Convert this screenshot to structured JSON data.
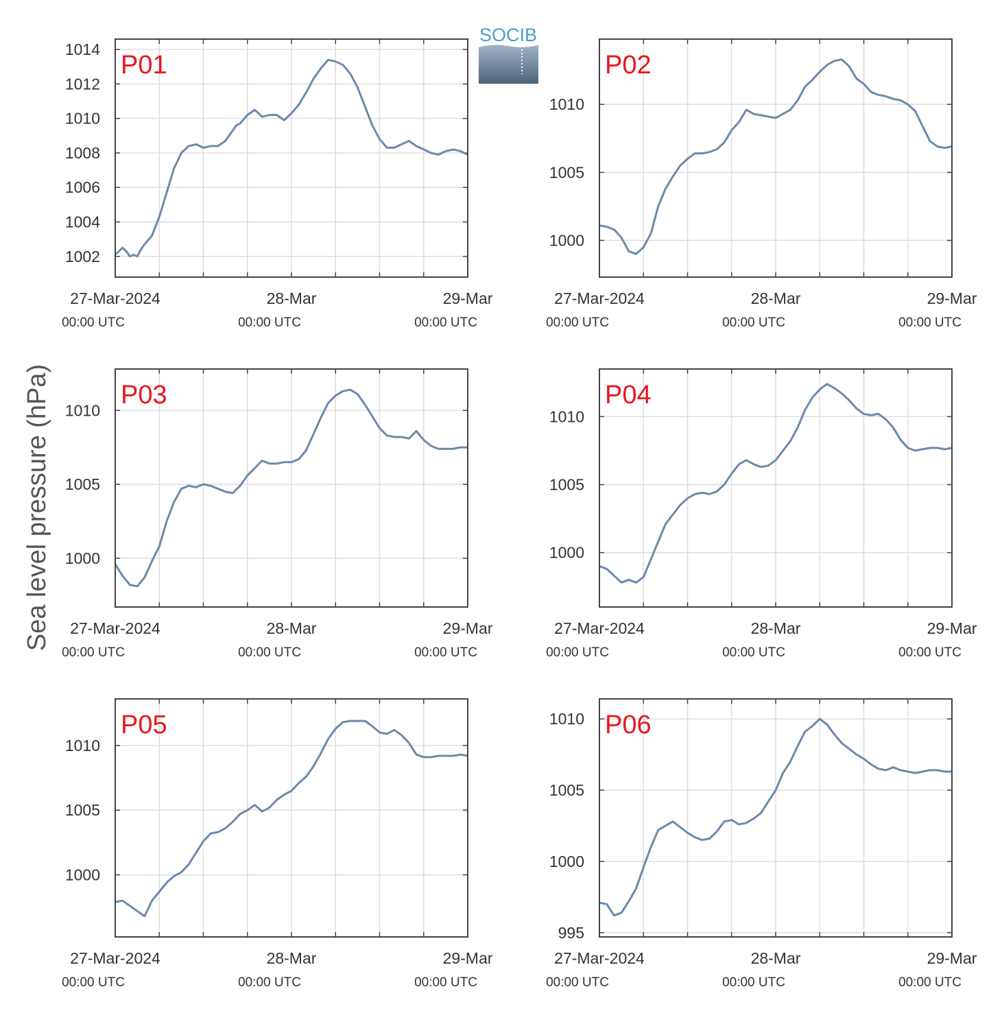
{
  "ylabel": "Sea level pressure (hPa)",
  "logo": {
    "text": "SOCIB"
  },
  "colors": {
    "line": "#6b8aab",
    "label": "#e8161f",
    "grid": "#dddddd",
    "axis": "#444444"
  },
  "chart_data": [
    {
      "type": "line",
      "label": "P01",
      "xlim": [
        0,
        48
      ],
      "ylim": [
        1000.8,
        1014.6
      ],
      "yticks": [
        1002,
        1004,
        1006,
        1008,
        1010,
        1012,
        1014
      ],
      "xticks": [
        "27-Mar-2024",
        "28-Mar",
        "29-Mar"
      ],
      "xsubticks": [
        "00:00 UTC",
        "00:00 UTC",
        "00:00 UTC"
      ],
      "x": [
        0,
        1,
        1.5,
        2,
        2.5,
        3,
        3.5,
        4,
        5,
        6,
        7,
        8,
        9,
        10,
        11,
        12,
        13,
        14,
        15,
        16,
        16.5,
        17,
        18,
        19,
        20,
        21,
        22,
        23,
        24,
        25,
        26,
        27,
        28,
        29,
        30,
        31,
        32,
        33,
        34,
        35,
        36,
        37,
        38,
        39,
        40,
        41,
        42,
        43,
        44,
        45,
        46,
        47,
        48
      ],
      "y": [
        1002.1,
        1002.5,
        1002.3,
        1002,
        1002.1,
        1002,
        1002.4,
        1002.7,
        1003.2,
        1004.3,
        1005.7,
        1007.1,
        1008,
        1008.4,
        1008.5,
        1008.3,
        1008.4,
        1008.4,
        1008.7,
        1009.3,
        1009.6,
        1009.7,
        1010.2,
        1010.5,
        1010.1,
        1010.2,
        1010.2,
        1009.9,
        1010.3,
        1010.8,
        1011.5,
        1012.3,
        1012.9,
        1013.4,
        1013.3,
        1013.1,
        1012.6,
        1011.8,
        1010.7,
        1009.6,
        1008.8,
        1008.3,
        1008.3,
        1008.5,
        1008.7,
        1008.4,
        1008.2,
        1008,
        1007.9,
        1008.1,
        1008.2,
        1008.1,
        1007.9
      ]
    },
    {
      "type": "line",
      "label": "P02",
      "xlim": [
        0,
        48
      ],
      "ylim": [
        997.3,
        1014.8
      ],
      "yticks": [
        1000,
        1005,
        1010
      ],
      "xticks": [
        "27-Mar-2024",
        "28-Mar",
        "29-Mar"
      ],
      "xsubticks": [
        "00:00 UTC",
        "00:00 UTC",
        "00:00 UTC"
      ],
      "x": [
        0,
        1,
        2,
        3,
        4,
        5,
        6,
        7,
        8,
        9,
        10,
        11,
        12,
        13,
        14,
        15,
        16,
        17,
        18,
        19,
        20,
        21,
        22,
        23,
        24,
        25,
        26,
        27,
        28,
        29,
        30,
        31,
        32,
        33,
        34,
        35,
        36,
        37,
        38,
        39,
        40,
        41,
        42,
        43,
        44,
        45,
        46,
        47,
        48
      ],
      "y": [
        1001.1,
        1001,
        1000.8,
        1000.2,
        999.2,
        999,
        999.5,
        1000.5,
        1002.5,
        1003.8,
        1004.7,
        1005.5,
        1006,
        1006.4,
        1006.4,
        1006.5,
        1006.7,
        1007.2,
        1008.1,
        1008.7,
        1009.6,
        1009.3,
        1009.2,
        1009.1,
        1009,
        1009.3,
        1009.6,
        1010.3,
        1011.3,
        1011.8,
        1012.4,
        1012.9,
        1013.2,
        1013.3,
        1012.8,
        1011.9,
        1011.5,
        1010.9,
        1010.7,
        1010.6,
        1010.4,
        1010.3,
        1010,
        1009.5,
        1008.4,
        1007.3,
        1006.9,
        1006.8,
        1006.9
      ]
    },
    {
      "type": "line",
      "label": "P03",
      "xlim": [
        0,
        48
      ],
      "ylim": [
        996.7,
        1012.8
      ],
      "yticks": [
        1000,
        1005,
        1010
      ],
      "xticks": [
        "27-Mar-2024",
        "28-Mar",
        "29-Mar"
      ],
      "xsubticks": [
        "00:00 UTC",
        "00:00 UTC",
        "00:00 UTC"
      ],
      "x": [
        0,
        1,
        2,
        3,
        4,
        5,
        6,
        7,
        8,
        9,
        10,
        11,
        12,
        13,
        14,
        15,
        16,
        17,
        18,
        19,
        20,
        21,
        22,
        23,
        24,
        25,
        26,
        27,
        28,
        29,
        30,
        31,
        32,
        33,
        34,
        35,
        36,
        37,
        38,
        39,
        40,
        41,
        42,
        43,
        44,
        45,
        46,
        47,
        48
      ],
      "y": [
        999.6,
        998.8,
        998.2,
        998.1,
        998.7,
        999.8,
        1000.8,
        1002.5,
        1003.8,
        1004.7,
        1004.9,
        1004.8,
        1005,
        1004.9,
        1004.7,
        1004.5,
        1004.4,
        1004.9,
        1005.6,
        1006.1,
        1006.6,
        1006.4,
        1006.4,
        1006.5,
        1006.5,
        1006.7,
        1007.3,
        1008.4,
        1009.5,
        1010.5,
        1011,
        1011.3,
        1011.4,
        1011.1,
        1010.4,
        1009.6,
        1008.8,
        1008.3,
        1008.2,
        1008.2,
        1008.1,
        1008.6,
        1008,
        1007.6,
        1007.4,
        1007.4,
        1007.4,
        1007.5,
        1007.5
      ]
    },
    {
      "type": "line",
      "label": "P04",
      "xlim": [
        0,
        48
      ],
      "ylim": [
        996,
        1013.5
      ],
      "yticks": [
        1000,
        1005,
        1010
      ],
      "xticks": [
        "27-Mar-2024",
        "28-Mar",
        "29-Mar"
      ],
      "xsubticks": [
        "00:00 UTC",
        "00:00 UTC",
        "00:00 UTC"
      ],
      "x": [
        0,
        1,
        2,
        3,
        4,
        5,
        6,
        7,
        8,
        9,
        10,
        11,
        12,
        13,
        14,
        15,
        16,
        17,
        18,
        19,
        20,
        21,
        22,
        23,
        24,
        25,
        26,
        27,
        28,
        29,
        30,
        31,
        32,
        33,
        34,
        35,
        36,
        37,
        38,
        39,
        40,
        41,
        42,
        43,
        44,
        45,
        46,
        47,
        48
      ],
      "y": [
        999,
        998.8,
        998.3,
        997.8,
        998,
        997.8,
        998.2,
        999.5,
        1000.8,
        1002.1,
        1002.8,
        1003.5,
        1004,
        1004.3,
        1004.4,
        1004.3,
        1004.5,
        1005,
        1005.8,
        1006.5,
        1006.8,
        1006.5,
        1006.3,
        1006.4,
        1006.8,
        1007.5,
        1008.2,
        1009.2,
        1010.5,
        1011.4,
        1012,
        1012.4,
        1012.1,
        1011.7,
        1011.2,
        1010.6,
        1010.2,
        1010.1,
        1010.2,
        1009.8,
        1009.2,
        1008.3,
        1007.7,
        1007.5,
        1007.6,
        1007.7,
        1007.7,
        1007.6,
        1007.7
      ]
    },
    {
      "type": "line",
      "label": "P05",
      "xlim": [
        0,
        48
      ],
      "ylim": [
        995.2,
        1013.6
      ],
      "yticks": [
        1000,
        1005,
        1010
      ],
      "xticks": [
        "27-Mar-2024",
        "28-Mar",
        "29-Mar"
      ],
      "xsubticks": [
        "00:00 UTC",
        "00:00 UTC",
        "00:00 UTC"
      ],
      "x": [
        0,
        1,
        2,
        3,
        4,
        5,
        6,
        7,
        8,
        9,
        10,
        11,
        12,
        13,
        14,
        15,
        16,
        17,
        18,
        19,
        20,
        21,
        22,
        23,
        24,
        25,
        26,
        27,
        28,
        29,
        30,
        31,
        32,
        33,
        34,
        35,
        36,
        37,
        38,
        39,
        40,
        41,
        42,
        43,
        44,
        45,
        46,
        47,
        48
      ],
      "y": [
        997.9,
        998,
        997.6,
        997.2,
        996.8,
        998,
        998.7,
        999.4,
        999.9,
        1000.2,
        1000.8,
        1001.7,
        1002.6,
        1003.2,
        1003.3,
        1003.6,
        1004.1,
        1004.7,
        1005,
        1005.4,
        1004.9,
        1005.2,
        1005.8,
        1006.2,
        1006.5,
        1007.1,
        1007.6,
        1008.4,
        1009.4,
        1010.5,
        1011.3,
        1011.8,
        1011.9,
        1011.9,
        1011.9,
        1011.5,
        1011,
        1010.9,
        1011.2,
        1010.8,
        1010.2,
        1009.3,
        1009.1,
        1009.1,
        1009.2,
        1009.2,
        1009.2,
        1009.3,
        1009.2
      ]
    },
    {
      "type": "line",
      "label": "P06",
      "xlim": [
        0,
        48
      ],
      "ylim": [
        994.7,
        1011.4
      ],
      "yticks": [
        995,
        1000,
        1005,
        1010
      ],
      "xticks": [
        "27-Mar-2024",
        "28-Mar",
        "29-Mar"
      ],
      "xsubticks": [
        "00:00 UTC",
        "00:00 UTC",
        "00:00 UTC"
      ],
      "x": [
        0,
        1,
        2,
        3,
        4,
        5,
        6,
        7,
        8,
        9,
        10,
        11,
        12,
        13,
        14,
        15,
        16,
        17,
        18,
        19,
        20,
        21,
        22,
        23,
        24,
        25,
        26,
        27,
        28,
        29,
        30,
        31,
        32,
        33,
        34,
        35,
        36,
        37,
        38,
        39,
        40,
        41,
        42,
        43,
        44,
        45,
        46,
        47,
        48
      ],
      "y": [
        997.1,
        997,
        996.2,
        996.4,
        997.2,
        998.1,
        999.6,
        1001,
        1002.2,
        1002.5,
        1002.8,
        1002.4,
        1002,
        1001.7,
        1001.5,
        1001.6,
        1002.1,
        1002.8,
        1002.9,
        1002.6,
        1002.7,
        1003,
        1003.4,
        1004.2,
        1005,
        1006.2,
        1007,
        1008.1,
        1009.1,
        1009.5,
        1010,
        1009.6,
        1008.9,
        1008.3,
        1007.9,
        1007.5,
        1007.2,
        1006.8,
        1006.5,
        1006.4,
        1006.6,
        1006.4,
        1006.3,
        1006.2,
        1006.3,
        1006.4,
        1006.4,
        1006.3,
        1006.3
      ]
    }
  ]
}
